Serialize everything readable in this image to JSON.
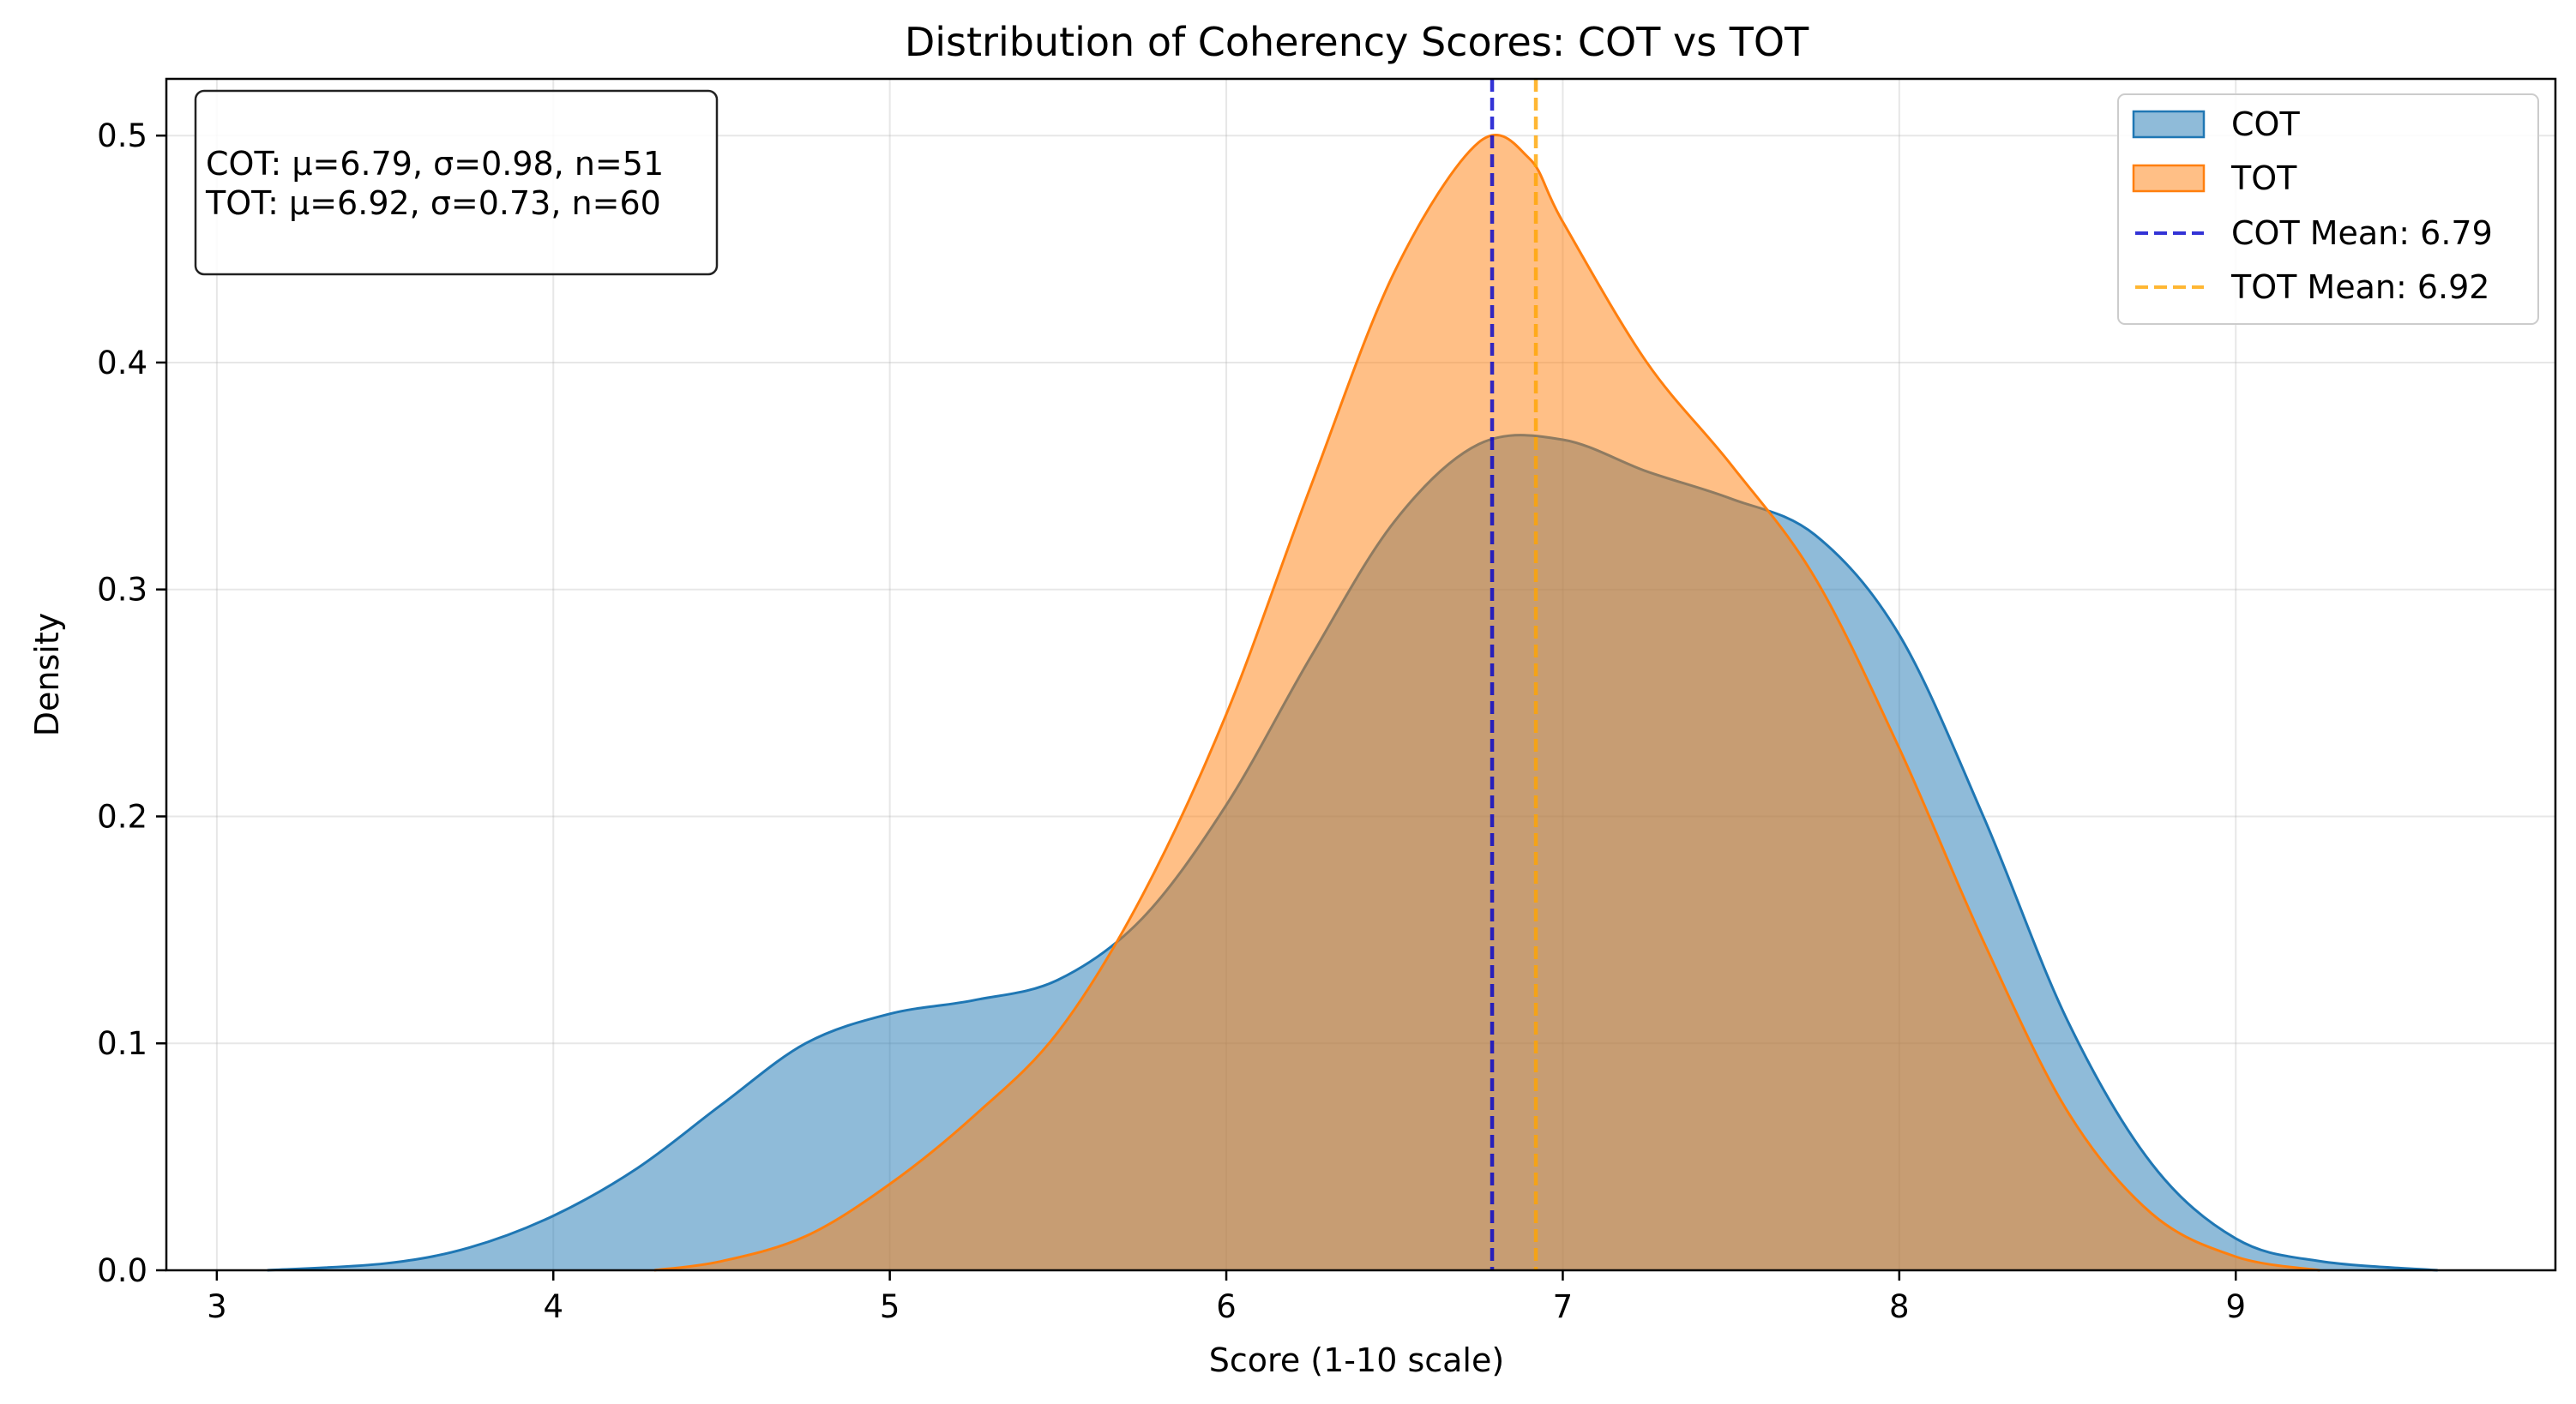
{
  "chart_data": {
    "type": "area",
    "title": "Distribution of Coherency Scores: COT vs TOT",
    "xlabel": "Score (1-10 scale)",
    "ylabel": "Density",
    "xlim": [
      2.85,
      9.95
    ],
    "ylim": [
      0,
      0.525
    ],
    "xticks": [
      3,
      4,
      5,
      6,
      7,
      8,
      9
    ],
    "yticks": [
      0.0,
      0.1,
      0.2,
      0.3,
      0.4,
      0.5
    ],
    "xtick_labels": [
      "3",
      "4",
      "5",
      "6",
      "7",
      "8",
      "9"
    ],
    "ytick_labels": [
      "0.0",
      "0.1",
      "0.2",
      "0.3",
      "0.4",
      "0.5"
    ],
    "grid": true,
    "legend_position": "top-right",
    "stats_box": {
      "line1": "COT: μ=6.79, σ=0.98, n=51",
      "line2": "TOT: μ=6.92, σ=0.73, n=60"
    },
    "series": [
      {
        "name": "COT",
        "color": "#1f77b4",
        "fill_color": "#1f77b4",
        "fill_opacity": 0.5,
        "x": [
          3.15,
          3.5,
          3.75,
          4.0,
          4.25,
          4.5,
          4.75,
          5.0,
          5.25,
          5.5,
          5.75,
          6.0,
          6.25,
          6.5,
          6.75,
          7.0,
          7.25,
          7.5,
          7.75,
          8.0,
          8.25,
          8.5,
          8.75,
          9.0,
          9.25,
          9.6
        ],
        "y": [
          0.0,
          0.003,
          0.01,
          0.024,
          0.045,
          0.073,
          0.1,
          0.113,
          0.119,
          0.128,
          0.155,
          0.205,
          0.27,
          0.33,
          0.364,
          0.366,
          0.352,
          0.34,
          0.324,
          0.28,
          0.2,
          0.11,
          0.047,
          0.014,
          0.004,
          0.0
        ]
      },
      {
        "name": "TOT",
        "color": "#ff7f0e",
        "fill_color": "#ff7f0e",
        "fill_opacity": 0.5,
        "x": [
          4.3,
          4.5,
          4.75,
          5.0,
          5.25,
          5.5,
          5.75,
          6.0,
          6.25,
          6.5,
          6.75,
          6.9,
          7.0,
          7.25,
          7.5,
          7.75,
          8.0,
          8.25,
          8.5,
          8.75,
          9.0,
          9.25
        ],
        "y": [
          0.0,
          0.004,
          0.015,
          0.038,
          0.068,
          0.105,
          0.165,
          0.245,
          0.345,
          0.44,
          0.497,
          0.49,
          0.462,
          0.4,
          0.355,
          0.305,
          0.23,
          0.145,
          0.07,
          0.025,
          0.006,
          0.0
        ]
      }
    ],
    "mean_lines": [
      {
        "name": "COT Mean: 6.79",
        "x": 6.79,
        "color": "#0000cc"
      },
      {
        "name": "TOT Mean: 6.92",
        "x": 6.92,
        "color": "#ffa500"
      }
    ]
  }
}
